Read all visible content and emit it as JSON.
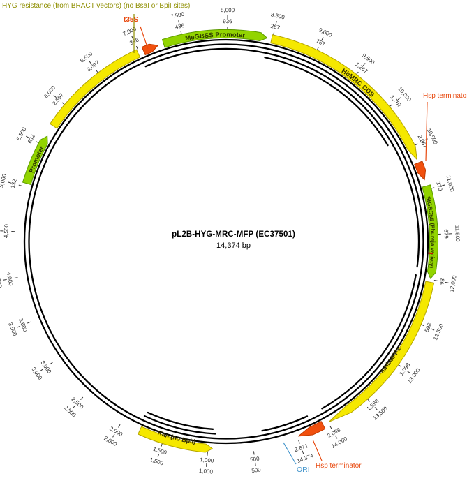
{
  "title": {
    "name": "pL2B-HYG-MRC-MFP (EC37501)",
    "size": "14,374 bp"
  },
  "chart_data": {
    "type": "plasmid_map",
    "plasmid_name": "pL2B-HYG-MRC-MFP (EC37501)",
    "length_bp": 14374,
    "length_label": "14,374 bp",
    "palette": {
      "yellow": {
        "fill": "#f5e800",
        "stroke": "#b3a400",
        "text": "#332f00"
      },
      "green": {
        "fill": "#92d400",
        "stroke": "#5d9b00",
        "text": "#2e3a00"
      },
      "orange": {
        "fill": "#f1500e",
        "stroke": "#bf3a00",
        "text": "#ffffff"
      },
      "backbone": "#000000",
      "tick_text": "#2b2b2b",
      "red_mark": "#cc0000"
    },
    "features": [
      {
        "id": "promoter-left",
        "label": "Promoter",
        "label_on_arc": true,
        "start": 5040,
        "end": 5610,
        "color": "green",
        "head": true,
        "direction": "cw",
        "label_size": 9
      },
      {
        "id": "hyg-resistance",
        "label": "",
        "label_on_arc": false,
        "start": 5740,
        "end": 6985,
        "color": "yellow",
        "head": false,
        "direction": "cw"
      },
      {
        "id": "t35s",
        "label": "",
        "label_on_arc": false,
        "start": 7050,
        "end": 7220,
        "color": "orange",
        "head": true,
        "direction": "cw"
      },
      {
        "id": "megbss-promoter",
        "label": "MeGBSS Promoter",
        "label_on_arc": true,
        "start": 7285,
        "end": 8440,
        "color": "green",
        "head": true,
        "direction": "cw",
        "label_size": 9.5
      },
      {
        "id": "hbmrc-cds",
        "label": "HbMRC CDS",
        "label_on_arc": true,
        "start": 8490,
        "end": 10650,
        "color": "yellow",
        "head": true,
        "direction": "cw",
        "head_length": 140,
        "label_size": 9.5
      },
      {
        "id": "hsp-terminator-1",
        "label": "",
        "label_on_arc": false,
        "start": 10690,
        "end": 10890,
        "color": "orange",
        "head": true,
        "direction": "cw"
      },
      {
        "id": "stgbss5",
        "label": "StGBSS5 (Phureja variety)",
        "label_on_arc": true,
        "start": 10960,
        "end": 11990,
        "color": "green",
        "head": true,
        "direction": "cw",
        "label_size": 8.2
      },
      {
        "id": "mhbmfp1",
        "label": "mHbMFP1",
        "label_on_arc": true,
        "start": 12030,
        "end": 13990,
        "color": "yellow",
        "head": true,
        "direction": "cw",
        "head_length": 260,
        "reversed_label": true,
        "label_size": 9
      },
      {
        "id": "hsp-terminator-2",
        "label": "",
        "label_on_arc": false,
        "start": 14060,
        "end": 14360,
        "color": "orange",
        "head": true,
        "direction": "cw"
      },
      {
        "id": "kan",
        "label": "Kan (no BpiI)",
        "label_on_arc": true,
        "start": 950,
        "end": 1780,
        "color": "yellow",
        "head": true,
        "direction": "ccw",
        "reversed_label": true,
        "label_size": 9
      }
    ],
    "red_marks": [
      {
        "pos": 11710
      }
    ],
    "backbone": {
      "circles": 2,
      "fragment_arcs": [
        {
          "level": 1,
          "span": [
            7000,
            11880
          ]
        },
        {
          "level": 2,
          "span": [
            8460,
            10350
          ]
        },
        {
          "level": 1,
          "span": [
            11980,
            13980
          ]
        },
        {
          "level": 1,
          "span": [
            930,
            1800
          ]
        },
        {
          "level": 2,
          "span": [
            960,
            1780
          ]
        },
        {
          "level": 1,
          "span": [
            14180,
            14744
          ]
        }
      ]
    },
    "ticks": [
      {
        "pos": 500,
        "outer": "500",
        "inner": "500"
      },
      {
        "pos": 1000,
        "outer": "1,000",
        "inner": "1,000"
      },
      {
        "pos": 1500,
        "outer": "1,500",
        "inner": "1,500"
      },
      {
        "pos": 2000,
        "outer": "2,000",
        "inner": "2,000"
      },
      {
        "pos": 2500,
        "outer": "2,500",
        "inner": "2,500"
      },
      {
        "pos": 3000,
        "outer": "3,000",
        "inner": "3,000"
      },
      {
        "pos": 3500,
        "outer": "3,500",
        "inner": "3,500"
      },
      {
        "pos": 4000,
        "outer": "4,000",
        "inner": "4,000"
      },
      {
        "pos": 4500,
        "outer": "4,500",
        "inner": "4,500"
      },
      {
        "pos": 5000,
        "outer": "5,000",
        "inner": "132"
      },
      {
        "pos": 5500,
        "outer": "5,500",
        "inner": "632"
      },
      {
        "pos": 6000,
        "outer": "6,000",
        "inner": "2,597"
      },
      {
        "pos": 6500,
        "outer": "6,500",
        "inner": "3,097"
      },
      {
        "pos": 7000,
        "outer": "7,000",
        "inner": "396"
      },
      {
        "pos": 7500,
        "outer": "7,500",
        "inner": "436"
      },
      {
        "pos": 8000,
        "outer": "8,000",
        "inner": "936"
      },
      {
        "pos": 8500,
        "outer": "8,500",
        "inner": "267"
      },
      {
        "pos": 9000,
        "outer": "9,000",
        "inner": "767"
      },
      {
        "pos": 9500,
        "outer": "9,500",
        "inner": "1,267"
      },
      {
        "pos": 10000,
        "outer": "10,000",
        "inner": "1,767"
      },
      {
        "pos": 10500,
        "outer": "10,500",
        "inner": "2,267"
      },
      {
        "pos": 11000,
        "outer": "11,000",
        "inner": "179"
      },
      {
        "pos": 11500,
        "outer": "11,500",
        "inner": "679"
      },
      {
        "pos": 12000,
        "outer": "12,000",
        "inner": "98"
      },
      {
        "pos": 12500,
        "outer": "12,500",
        "inner": "598"
      },
      {
        "pos": 13000,
        "outer": "13,000",
        "inner": "1,098"
      },
      {
        "pos": 13500,
        "outer": "13,500",
        "inner": "1,598"
      },
      {
        "pos": 14000,
        "outer": "14,000",
        "inner": "2,098"
      },
      {
        "pos": 14374,
        "outer": "14,374",
        "inner": "2,871"
      }
    ],
    "labels": {
      "hyg_note": {
        "text": "HYG resistance (from BRACT vectors) (no BsaI or BpiI sites)",
        "color": "#8e8e00"
      },
      "t35s": {
        "text": "t35S",
        "color": "#e8490f"
      },
      "hsp1": {
        "text": "Hsp terminator",
        "color": "#e8490f"
      },
      "hsp2": {
        "text": "Hsp terminator",
        "color": "#e8490f"
      },
      "ori": {
        "text": "ORI",
        "color": "#4596cc"
      }
    }
  }
}
